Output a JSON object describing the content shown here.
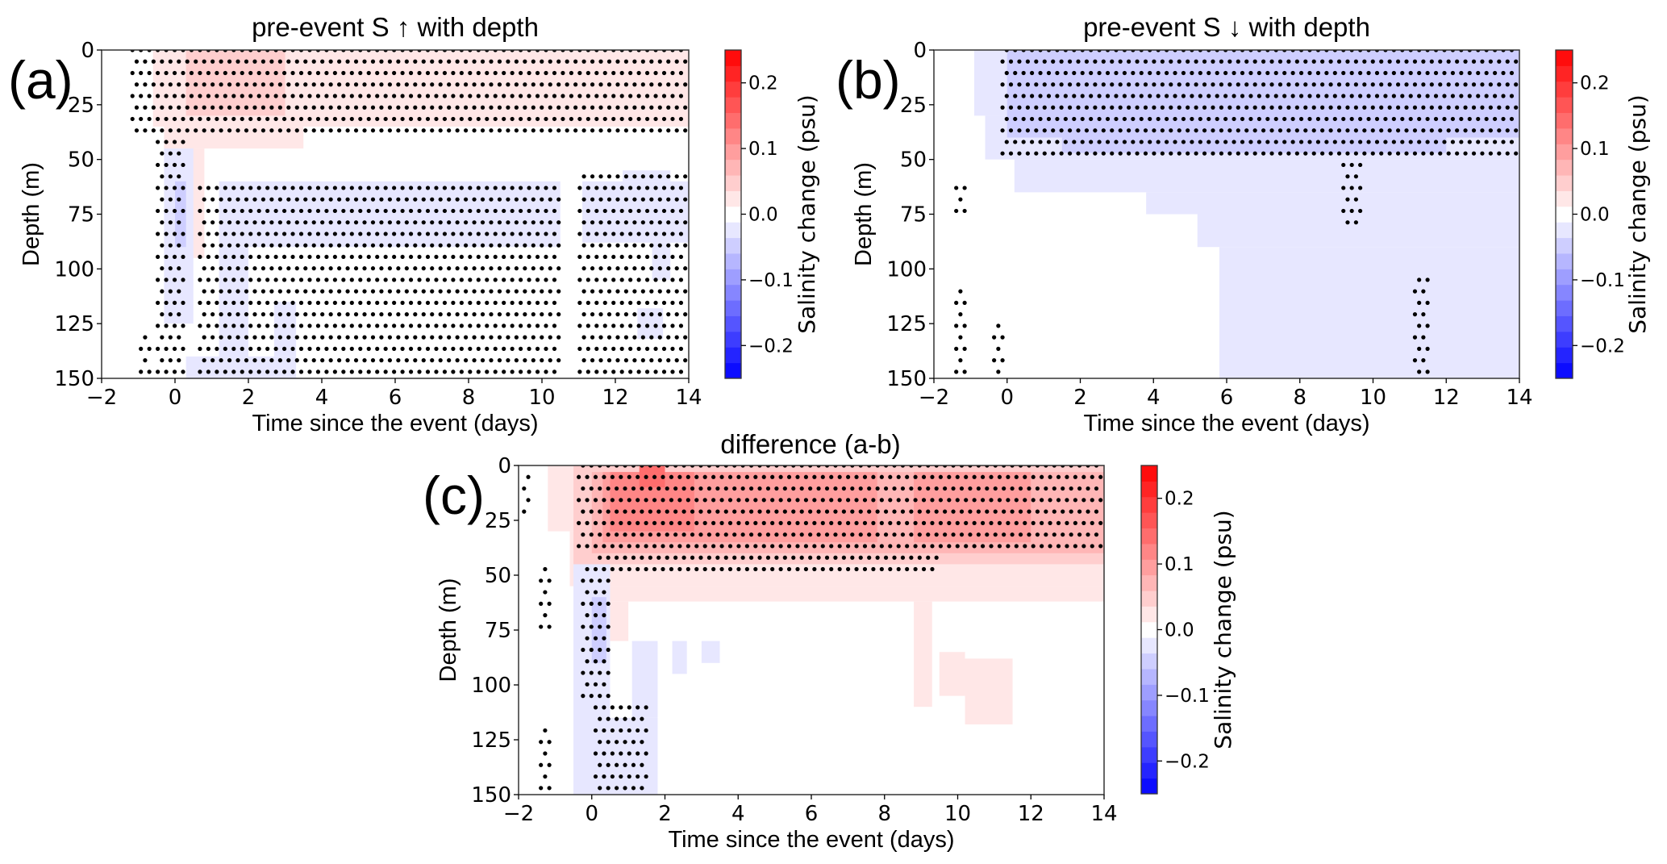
{
  "chart_data": [
    {
      "id": "a",
      "type": "heatmap",
      "panel_label": "(a)",
      "title": "pre-event S ↑ with depth",
      "xlabel": "Time since the event (days)",
      "ylabel": "Depth (m)",
      "xlim": [
        -2,
        14
      ],
      "ylim": [
        150,
        0
      ],
      "xticks": [
        -2,
        0,
        2,
        4,
        6,
        8,
        10,
        12,
        14
      ],
      "xtick_labels": [
        "−2",
        "0",
        "2",
        "4",
        "6",
        "8",
        "10",
        "12",
        "14"
      ],
      "yticks": [
        0,
        25,
        50,
        75,
        100,
        125,
        150
      ],
      "ytick_labels": [
        "0",
        "25",
        "50",
        "75",
        "100",
        "125",
        "150"
      ],
      "colorbar": {
        "label": "Salinity change (psu)",
        "range": [
          -0.25,
          0.25
        ],
        "levels": 21,
        "ticks": [
          0.2,
          0.1,
          0.0,
          -0.1,
          -0.2
        ],
        "tick_labels": [
          "0.2",
          "0.1",
          "0.0",
          "−0.1",
          "−0.2"
        ],
        "colormap": "bwr"
      },
      "patches": [
        {
          "t": [
            -0.6,
            14
          ],
          "d": [
            0,
            35
          ],
          "value": 0.024
        },
        {
          "t": [
            -0.3,
            3.5
          ],
          "d": [
            35,
            45
          ],
          "value": 0.024
        },
        {
          "t": [
            0.4,
            0.8
          ],
          "d": [
            45,
            95
          ],
          "value": 0.024
        },
        {
          "t": [
            0.3,
            3.0
          ],
          "d": [
            0,
            30
          ],
          "value": 0.048
        },
        {
          "t": [
            1.2,
            10.5
          ],
          "d": [
            60,
            90
          ],
          "value": -0.024
        },
        {
          "t": [
            -0.3,
            0.5
          ],
          "d": [
            45,
            125
          ],
          "value": -0.024
        },
        {
          "t": [
            1.2,
            2.0
          ],
          "d": [
            90,
            150
          ],
          "value": -0.024
        },
        {
          "t": [
            0.3,
            3.3
          ],
          "d": [
            140,
            150
          ],
          "value": -0.024
        },
        {
          "t": [
            2.7,
            3.3
          ],
          "d": [
            115,
            140
          ],
          "value": -0.024
        },
        {
          "t": [
            11.1,
            14
          ],
          "d": [
            60,
            88
          ],
          "value": -0.024
        },
        {
          "t": [
            12.2,
            13.5
          ],
          "d": [
            55,
            60
          ],
          "value": -0.024
        },
        {
          "t": [
            13.0,
            13.5
          ],
          "d": [
            88,
            105
          ],
          "value": -0.024
        },
        {
          "t": [
            12.6,
            13.3
          ],
          "d": [
            118,
            132
          ],
          "value": -0.024
        },
        {
          "t": [
            0.0,
            0.3
          ],
          "d": [
            60,
            90
          ],
          "value": -0.048
        }
      ],
      "stipple": [
        {
          "t": [
            -1.2,
            14
          ],
          "d": [
            0,
            40
          ]
        },
        {
          "t": [
            -0.5,
            0.3
          ],
          "d": [
            40,
            150
          ]
        },
        {
          "t": [
            0.6,
            10.5
          ],
          "d": [
            58,
            150
          ]
        },
        {
          "t": [
            11.0,
            14
          ],
          "d": [
            55,
            150
          ]
        },
        {
          "t": [
            -1.0,
            -0.6
          ],
          "d": [
            130,
            150
          ]
        }
      ]
    },
    {
      "id": "b",
      "type": "heatmap",
      "panel_label": "(b)",
      "title": "pre-event S ↓ with depth",
      "xlabel": "Time since the event (days)",
      "ylabel": "Depth (m)",
      "xlim": [
        -2,
        14
      ],
      "ylim": [
        150,
        0
      ],
      "xticks": [
        -2,
        0,
        2,
        4,
        6,
        8,
        10,
        12,
        14
      ],
      "xtick_labels": [
        "−2",
        "0",
        "2",
        "4",
        "6",
        "8",
        "10",
        "12",
        "14"
      ],
      "yticks": [
        0,
        25,
        50,
        75,
        100,
        125,
        150
      ],
      "ytick_labels": [
        "0",
        "25",
        "50",
        "75",
        "100",
        "125",
        "150"
      ],
      "colorbar": {
        "label": "Salinity change (psu)",
        "range": [
          -0.25,
          0.25
        ],
        "levels": 21,
        "ticks": [
          0.2,
          0.1,
          0.0,
          -0.1,
          -0.2
        ],
        "tick_labels": [
          "0.2",
          "0.1",
          "0.0",
          "−0.1",
          "−0.2"
        ],
        "colormap": "bwr"
      },
      "patches": [
        {
          "t": [
            -0.9,
            14
          ],
          "d": [
            0,
            30
          ],
          "value": -0.024
        },
        {
          "t": [
            -0.6,
            14
          ],
          "d": [
            30,
            50
          ],
          "value": -0.024
        },
        {
          "t": [
            0.2,
            14
          ],
          "d": [
            50,
            65
          ],
          "value": -0.024
        },
        {
          "t": [
            3.8,
            14
          ],
          "d": [
            65,
            75
          ],
          "value": -0.024
        },
        {
          "t": [
            5.2,
            14
          ],
          "d": [
            75,
            90
          ],
          "value": -0.024
        },
        {
          "t": [
            5.8,
            14
          ],
          "d": [
            90,
            150
          ],
          "value": -0.024
        },
        {
          "t": [
            0.0,
            14
          ],
          "d": [
            0,
            40
          ],
          "value": -0.048
        },
        {
          "t": [
            1.5,
            12
          ],
          "d": [
            40,
            47
          ],
          "value": -0.048
        }
      ],
      "stipple": [
        {
          "t": [
            -0.2,
            14
          ],
          "d": [
            0,
            50
          ]
        },
        {
          "t": [
            9.1,
            9.7
          ],
          "d": [
            50,
            80
          ]
        },
        {
          "t": [
            -1.4,
            -1.1
          ],
          "d": [
            60,
            75
          ]
        },
        {
          "t": [
            -1.5,
            -1.1
          ],
          "d": [
            110,
            150
          ]
        },
        {
          "t": [
            -0.4,
            -0.1
          ],
          "d": [
            125,
            150
          ]
        },
        {
          "t": [
            11.1,
            11.5
          ],
          "d": [
            100,
            150
          ]
        }
      ]
    },
    {
      "id": "c",
      "type": "heatmap",
      "panel_label": "(c)",
      "title": "difference (a-b)",
      "xlabel": "Time since the event (days)",
      "ylabel": "Depth (m)",
      "xlim": [
        -2,
        14
      ],
      "ylim": [
        150,
        0
      ],
      "xticks": [
        -2,
        0,
        2,
        4,
        6,
        8,
        10,
        12,
        14
      ],
      "xtick_labels": [
        "−2",
        "0",
        "2",
        "4",
        "6",
        "8",
        "10",
        "12",
        "14"
      ],
      "yticks": [
        0,
        25,
        50,
        75,
        100,
        125,
        150
      ],
      "ytick_labels": [
        "0",
        "25",
        "50",
        "75",
        "100",
        "125",
        "150"
      ],
      "colorbar": {
        "label": "Salinity change (psu)",
        "range": [
          -0.25,
          0.25
        ],
        "levels": 21,
        "ticks": [
          0.2,
          0.1,
          0.0,
          -0.1,
          -0.2
        ],
        "tick_labels": [
          "0.2",
          "0.1",
          "0.0",
          "−0.1",
          "−0.2"
        ],
        "colormap": "bwr"
      },
      "patches": [
        {
          "t": [
            -1.2,
            14
          ],
          "d": [
            0,
            30
          ],
          "value": 0.024
        },
        {
          "t": [
            -0.6,
            14
          ],
          "d": [
            30,
            55
          ],
          "value": 0.024
        },
        {
          "t": [
            0.5,
            14
          ],
          "d": [
            55,
            62
          ],
          "value": 0.024
        },
        {
          "t": [
            0.5,
            1.0
          ],
          "d": [
            62,
            80
          ],
          "value": 0.024
        },
        {
          "t": [
            8.8,
            9.3
          ],
          "d": [
            62,
            110
          ],
          "value": 0.024
        },
        {
          "t": [
            9.5,
            10.2
          ],
          "d": [
            85,
            105
          ],
          "value": 0.024
        },
        {
          "t": [
            10.2,
            11.5
          ],
          "d": [
            88,
            118
          ],
          "value": 0.024
        },
        {
          "t": [
            -0.5,
            14
          ],
          "d": [
            0,
            45
          ],
          "value": 0.048
        },
        {
          "t": [
            0.0,
            14
          ],
          "d": [
            3,
            40
          ],
          "value": 0.071
        },
        {
          "t": [
            0.3,
            7.8
          ],
          "d": [
            3,
            35
          ],
          "value": 0.095
        },
        {
          "t": [
            8.8,
            12.0
          ],
          "d": [
            3,
            35
          ],
          "value": 0.095
        },
        {
          "t": [
            0.5,
            2.8
          ],
          "d": [
            3,
            30
          ],
          "value": 0.119
        },
        {
          "t": [
            1.3,
            2.0
          ],
          "d": [
            0,
            10
          ],
          "value": 0.143
        },
        {
          "t": [
            -0.5,
            0.5
          ],
          "d": [
            45,
            150
          ],
          "value": -0.024
        },
        {
          "t": [
            0.4,
            1.8
          ],
          "d": [
            115,
            150
          ],
          "value": -0.024
        },
        {
          "t": [
            1.1,
            1.8
          ],
          "d": [
            80,
            115
          ],
          "value": -0.024
        },
        {
          "t": [
            2.2,
            2.6
          ],
          "d": [
            80,
            95
          ],
          "value": -0.024
        },
        {
          "t": [
            3.0,
            3.5
          ],
          "d": [
            80,
            90
          ],
          "value": -0.024
        },
        {
          "t": [
            0.0,
            0.4
          ],
          "d": [
            60,
            90
          ],
          "value": -0.048
        }
      ],
      "stipple": [
        {
          "t": [
            -0.4,
            14
          ],
          "d": [
            0,
            40
          ]
        },
        {
          "t": [
            0.2,
            9.5
          ],
          "d": [
            40,
            52
          ]
        },
        {
          "t": [
            -0.3,
            0.5
          ],
          "d": [
            45,
            110
          ]
        },
        {
          "t": [
            0.0,
            1.5
          ],
          "d": [
            110,
            150
          ]
        },
        {
          "t": [
            -1.4,
            -1.1
          ],
          "d": [
            45,
            75
          ]
        },
        {
          "t": [
            -1.4,
            -1.1
          ],
          "d": [
            120,
            150
          ]
        },
        {
          "t": [
            -2.0,
            -1.7
          ],
          "d": [
            3,
            25
          ]
        }
      ]
    }
  ]
}
